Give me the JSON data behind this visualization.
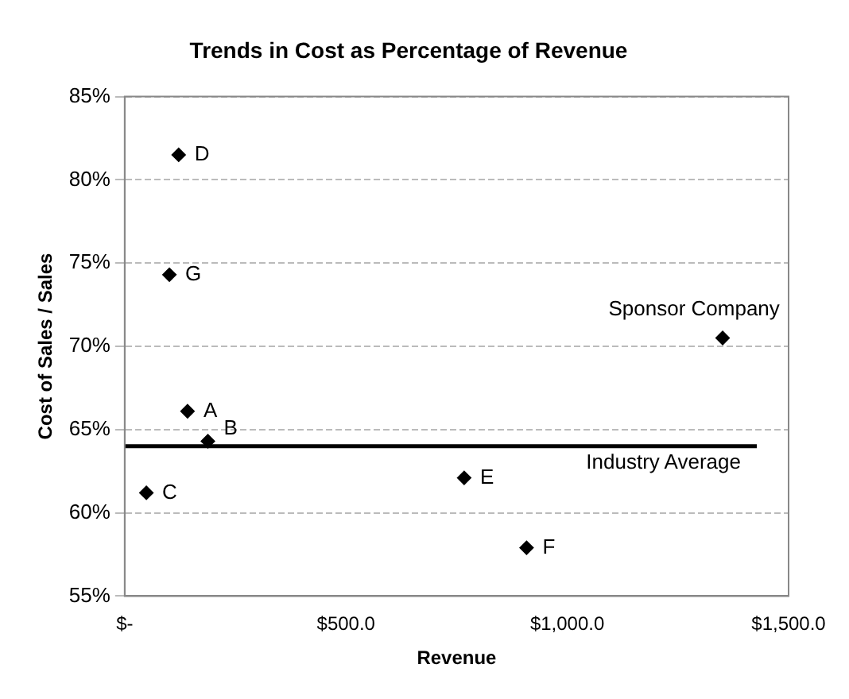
{
  "chart_data": {
    "type": "scatter",
    "title": "Trends in Cost as Percentage of Revenue",
    "xlabel": "Revenue",
    "ylabel": "Cost of Sales / Sales",
    "x": [
      142,
      188,
      49,
      122,
      767,
      908,
      101,
      1351
    ],
    "values": [
      66.1,
      64.3,
      61.2,
      81.5,
      62.1,
      57.9,
      74.3,
      70.5
    ],
    "color": "#000000",
    "marker": "diamond",
    "grid": "y",
    "legend": false,
    "xlim": [
      0,
      1500
    ],
    "xticks": [
      {
        "value": 0,
        "label": "$-"
      },
      {
        "value": 500,
        "label": "$500.0"
      },
      {
        "value": 1000,
        "label": "$1,000.0"
      },
      {
        "value": 1500,
        "label": "$1,500.0"
      }
    ],
    "ylim": [
      55,
      85
    ],
    "yticks": [
      {
        "value": 55,
        "label": "55%"
      },
      {
        "value": 60,
        "label": "60%"
      },
      {
        "value": 65,
        "label": "65%"
      },
      {
        "value": 70,
        "label": "70%"
      },
      {
        "value": 75,
        "label": "75%"
      },
      {
        "value": 80,
        "label": "80%"
      },
      {
        "value": 85,
        "label": "85%"
      }
    ],
    "ref_lines": [
      {
        "axis": "y",
        "value": 64,
        "label": "Industry Average",
        "color": "#000000"
      }
    ],
    "annotations": [
      {
        "text": "A",
        "x": 142,
        "y": 66.1
      },
      {
        "text": "B",
        "x": 188,
        "y": 64.3
      },
      {
        "text": "C",
        "x": 49,
        "y": 61.2
      },
      {
        "text": "D",
        "x": 122,
        "y": 81.5
      },
      {
        "text": "E",
        "x": 767,
        "y": 62.1
      },
      {
        "text": "F",
        "x": 908,
        "y": 57.9
      },
      {
        "text": "G",
        "x": 101,
        "y": 74.3
      },
      {
        "text": "Sponsor Company",
        "x": 1351,
        "y": 70.5
      }
    ]
  }
}
